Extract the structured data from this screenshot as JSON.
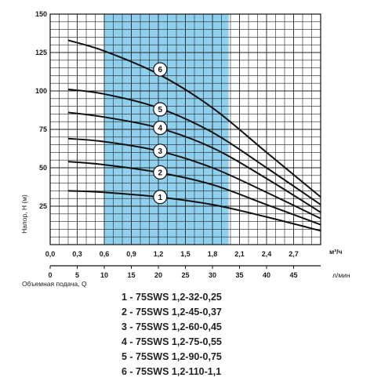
{
  "chart_data": {
    "type": "line",
    "ylabel": "Напор, H (м)",
    "xlabel": "Объемная подача, Q",
    "x_unit": "м³/ч",
    "x2_unit": "л/мин",
    "xlim": [
      0,
      3.0
    ],
    "ylim": [
      0,
      150
    ],
    "x_ticks": [
      0.0,
      0.3,
      0.6,
      0.9,
      1.2,
      1.5,
      1.8,
      2.1,
      2.4,
      2.7
    ],
    "x_tick_labels": [
      "0,0",
      "0,3",
      "0,6",
      "0,9",
      "1,2",
      "1,5",
      "1,8",
      "2,1",
      "2,4",
      "2,7"
    ],
    "x2_ticks": [
      0,
      5,
      10,
      15,
      20,
      25,
      30,
      35,
      40,
      45
    ],
    "x2_tick_labels": [
      "0",
      "5",
      "10",
      "15",
      "20",
      "25",
      "30",
      "35",
      "40",
      "45"
    ],
    "y_ticks": [
      25,
      50,
      75,
      100,
      125,
      150
    ],
    "y_tick_labels": [
      "25",
      "50",
      "75",
      "100",
      "125",
      "150"
    ],
    "grid": true,
    "highlight_range_x": [
      0.6,
      1.98
    ],
    "highlight_color": "#8fd0ee",
    "series": [
      {
        "name": "1",
        "x": [
          0.2,
          0.6,
          1.2,
          1.8,
          2.4,
          3.0
        ],
        "y": [
          35,
          34,
          31,
          26,
          18,
          9
        ]
      },
      {
        "name": "2",
        "x": [
          0.2,
          0.6,
          1.2,
          1.8,
          2.4,
          3.0
        ],
        "y": [
          54,
          52,
          47,
          39,
          26,
          13
        ]
      },
      {
        "name": "3",
        "x": [
          0.2,
          0.6,
          1.2,
          1.8,
          2.4,
          3.0
        ],
        "y": [
          69,
          67,
          61,
          50,
          34,
          17
        ]
      },
      {
        "name": "4",
        "x": [
          0.2,
          0.6,
          1.2,
          1.8,
          2.4,
          3.0
        ],
        "y": [
          86,
          83,
          76,
          63,
          43,
          21
        ]
      },
      {
        "name": "5",
        "x": [
          0.2,
          0.6,
          1.2,
          1.8,
          2.4,
          3.0
        ],
        "y": [
          101,
          98,
          89,
          73,
          50,
          26
        ]
      },
      {
        "name": "6",
        "x": [
          0.2,
          0.6,
          1.2,
          1.8,
          2.4,
          3.0
        ],
        "y": [
          133,
          126,
          111,
          89,
          60,
          31
        ]
      }
    ],
    "curve_labels": [
      {
        "text": "1",
        "x": 1.22,
        "y": 31
      },
      {
        "text": "2",
        "x": 1.22,
        "y": 47
      },
      {
        "text": "3",
        "x": 1.22,
        "y": 61
      },
      {
        "text": "4",
        "x": 1.22,
        "y": 76
      },
      {
        "text": "5",
        "x": 1.22,
        "y": 88
      },
      {
        "text": "6",
        "x": 1.22,
        "y": 114
      }
    ]
  },
  "legend": [
    "1 - 75SWS 1,2-32-0,25",
    "2 - 75SWS 1,2-45-0,37",
    "3 - 75SWS 1,2-60-0,45",
    "4 - 75SWS 1,2-75-0,55",
    "5 - 75SWS 1,2-90-0,75",
    "6 - 75SWS 1,2-110-1,1"
  ]
}
